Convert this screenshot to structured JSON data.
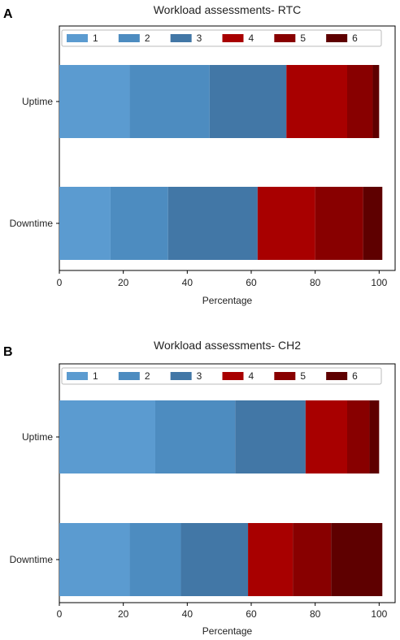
{
  "chart_data": [
    {
      "panel": "A",
      "type": "bar",
      "orientation": "horizontal",
      "stacked": true,
      "title": "Workload assessments- RTC",
      "xlabel": "Percentage",
      "ylabel": "",
      "xlim": [
        0,
        105
      ],
      "xticks": [
        0,
        20,
        40,
        60,
        80,
        100
      ],
      "categories": [
        "Uptime",
        "Downtime"
      ],
      "legend_position": "top",
      "series": [
        {
          "name": "1",
          "color": "#5b9bd0",
          "values": [
            22,
            16
          ]
        },
        {
          "name": "2",
          "color": "#4d8cc0",
          "values": [
            25,
            18
          ]
        },
        {
          "name": "3",
          "color": "#4277a6",
          "values": [
            24,
            28
          ]
        },
        {
          "name": "4",
          "color": "#a80000",
          "values": [
            19,
            18
          ]
        },
        {
          "name": "5",
          "color": "#880000",
          "values": [
            8,
            15
          ]
        },
        {
          "name": "6",
          "color": "#5e0000",
          "values": [
            2,
            6
          ]
        }
      ]
    },
    {
      "panel": "B",
      "type": "bar",
      "orientation": "horizontal",
      "stacked": true,
      "title": "Workload assessments- CH2",
      "xlabel": "Percentage",
      "ylabel": "",
      "xlim": [
        0,
        105
      ],
      "xticks": [
        0,
        20,
        40,
        60,
        80,
        100
      ],
      "categories": [
        "Uptime",
        "Downtime"
      ],
      "legend_position": "top",
      "series": [
        {
          "name": "1",
          "color": "#5b9bd0",
          "values": [
            30,
            22
          ]
        },
        {
          "name": "2",
          "color": "#4d8cc0",
          "values": [
            25,
            16
          ]
        },
        {
          "name": "3",
          "color": "#4277a6",
          "values": [
            22,
            21
          ]
        },
        {
          "name": "4",
          "color": "#a80000",
          "values": [
            13,
            14
          ]
        },
        {
          "name": "5",
          "color": "#880000",
          "values": [
            7,
            12
          ]
        },
        {
          "name": "6",
          "color": "#5e0000",
          "values": [
            3,
            16
          ]
        }
      ]
    }
  ]
}
